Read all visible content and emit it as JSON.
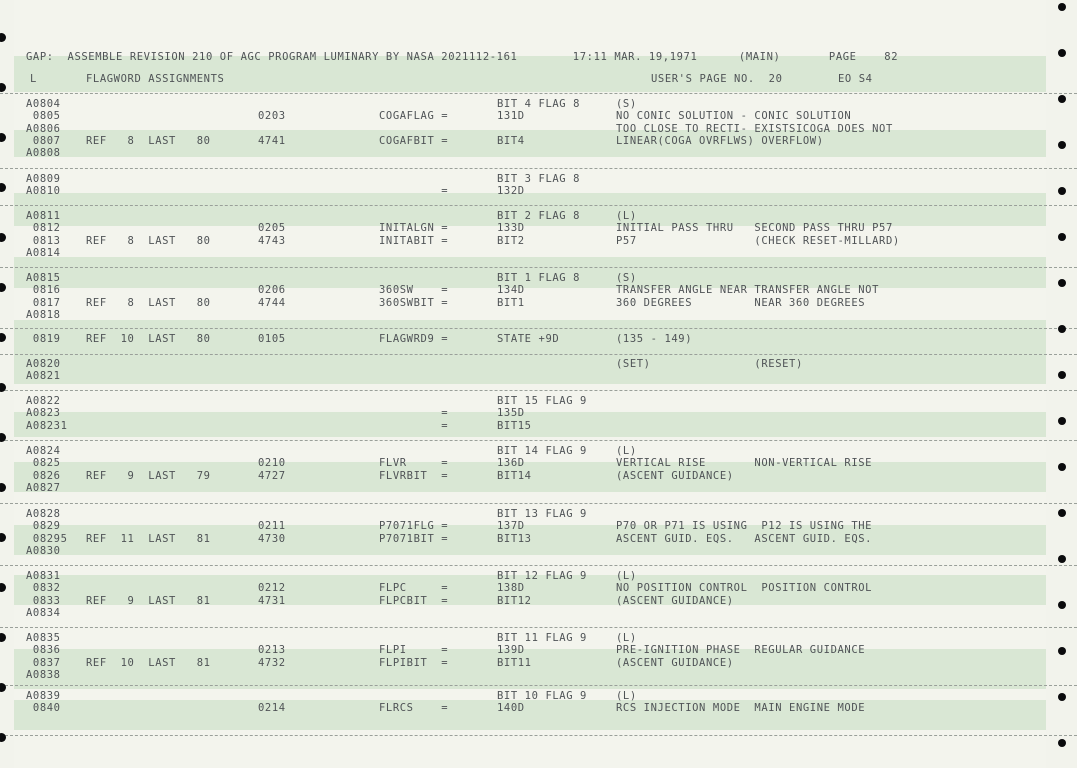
{
  "header": {
    "line1": "GAP:  ASSEMBLE REVISION 210 OF AGC PROGRAM LUMINARY BY NASA 2021112-161        17:11 MAR. 19,1971      (MAIN)       PAGE    82",
    "left": "L",
    "title": "FLAGWORD ASSIGNMENTS",
    "user_page": "USER'S PAGE NO.  20",
    "eo": "EO S4"
  },
  "groups": [
    {
      "lines": [
        {
          "c1": "A0804",
          "c5": "BIT 4 FLAG 8",
          "c6": "(S)"
        },
        {
          "c1": " 0805",
          "c3": "0203",
          "c4": "COGAFLAG =",
          "c5": "131D",
          "c6": "NO CONIC SOLUTION - CONIC SOLUTION"
        },
        {
          "c1": "A0806",
          "c6": "TOO CLOSE TO RECTI- EXISTSICOGA DOES NOT"
        },
        {
          "c1": " 0807",
          "c2": "REF   8  LAST   80",
          "c3": "4741",
          "c4": "COGAFBIT =",
          "c5": "BIT4",
          "c6": "LINEAR(COGA OVRFLWS) OVERFLOW)"
        },
        {
          "c1": "A0808"
        }
      ]
    },
    {
      "lines": [
        {
          "c1": "A0809",
          "c5": "BIT 3 FLAG 8"
        },
        {
          "c1": "A0810",
          "c4": "         =",
          "c5": "132D"
        }
      ]
    },
    {
      "lines": [
        {
          "c1": "A0811",
          "c5": "BIT 2 FLAG 8",
          "c6": "(L)"
        },
        {
          "c1": " 0812",
          "c3": "0205",
          "c4": "INITALGN =",
          "c5": "133D",
          "c6": "INITIAL PASS THRU   SECOND PASS THRU P57"
        },
        {
          "c1": " 0813",
          "c2": "REF   8  LAST   80",
          "c3": "4743",
          "c4": "INITABIT =",
          "c5": "BIT2",
          "c6": "P57                 (CHECK RESET-MILLARD)"
        },
        {
          "c1": "A0814"
        }
      ]
    },
    {
      "lines": [
        {
          "c1": "A0815",
          "c5": "BIT 1 FLAG 8",
          "c6": "(S)"
        },
        {
          "c1": " 0816",
          "c3": "0206",
          "c4": "360SW    =",
          "c5": "134D",
          "c6": "TRANSFER ANGLE NEAR TRANSFER ANGLE NOT"
        },
        {
          "c1": " 0817",
          "c2": "REF   8  LAST   80",
          "c3": "4744",
          "c4": "360SWBIT =",
          "c5": "BIT1",
          "c6": "360 DEGREES         NEAR 360 DEGREES"
        },
        {
          "c1": "A0818"
        }
      ]
    },
    {
      "lines": [
        {
          "c1": " 0819",
          "c2": "REF  10  LAST   80",
          "c3": "0105",
          "c4": "FLAGWRD9 =",
          "c5": "STATE +9D",
          "c6": "(135 - 149)"
        }
      ]
    },
    {
      "lines": [
        {
          "c1": "A0820",
          "c6": "(SET)               (RESET)"
        },
        {
          "c1": "A0821"
        }
      ]
    },
    {
      "lines": [
        {
          "c1": "A0822",
          "c5": "BIT 15 FLAG 9"
        },
        {
          "c1": "A0823",
          "c4": "         =",
          "c5": "135D"
        },
        {
          "c1": "A08231",
          "c4": "         =",
          "c5": "BIT15"
        }
      ]
    },
    {
      "lines": [
        {
          "c1": "A0824",
          "c5": "BIT 14 FLAG 9",
          "c6": "(L)"
        },
        {
          "c1": " 0825",
          "c3": "0210",
          "c4": "FLVR     =",
          "c5": "136D",
          "c6": "VERTICAL RISE       NON-VERTICAL RISE"
        },
        {
          "c1": " 0826",
          "c2": "REF   9  LAST   79",
          "c3": "4727",
          "c4": "FLVRBIT  =",
          "c5": "BIT14",
          "c6": "(ASCENT GUIDANCE)"
        },
        {
          "c1": "A0827"
        }
      ]
    },
    {
      "lines": [
        {
          "c1": "A0828",
          "c5": "BIT 13 FLAG 9"
        },
        {
          "c1": " 0829",
          "c3": "0211",
          "c4": "P7071FLG =",
          "c5": "137D",
          "c6": "P70 OR P71 IS USING  P12 IS USING THE"
        },
        {
          "c1": " 08295",
          "c2": "REF  11  LAST   81",
          "c3": "4730",
          "c4": "P7071BIT =",
          "c5": "BIT13",
          "c6": "ASCENT GUID. EQS.   ASCENT GUID. EQS."
        },
        {
          "c1": "A0830"
        }
      ]
    },
    {
      "lines": [
        {
          "c1": "A0831",
          "c5": "BIT 12 FLAG 9",
          "c6": "(L)"
        },
        {
          "c1": " 0832",
          "c3": "0212",
          "c4": "FLPC     =",
          "c5": "138D",
          "c6": "NO POSITION CONTROL  POSITION CONTROL"
        },
        {
          "c1": " 0833",
          "c2": "REF   9  LAST   81",
          "c3": "4731",
          "c4": "FLPCBIT  =",
          "c5": "BIT12",
          "c6": "(ASCENT GUIDANCE)"
        },
        {
          "c1": "A0834"
        }
      ]
    },
    {
      "lines": [
        {
          "c1": "A0835",
          "c5": "BIT 11 FLAG 9",
          "c6": "(L)"
        },
        {
          "c1": " 0836",
          "c3": "0213",
          "c4": "FLPI     =",
          "c5": "139D",
          "c6": "PRE-IGNITION PHASE  REGULAR GUIDANCE"
        },
        {
          "c1": " 0837",
          "c2": "REF  10  LAST   81",
          "c3": "4732",
          "c4": "FLPIBIT  =",
          "c5": "BIT11",
          "c6": "(ASCENT GUIDANCE)"
        },
        {
          "c1": "A0838"
        }
      ]
    },
    {
      "lines": [
        {
          "c1": "A0839",
          "c5": "BIT 10 FLAG 9",
          "c6": "(L)"
        },
        {
          "c1": " 0840",
          "c3": "0214",
          "c4": "FLRCS    =",
          "c5": "140D",
          "c6": "RCS INJECTION MODE  MAIN ENGINE MODE"
        }
      ]
    }
  ]
}
